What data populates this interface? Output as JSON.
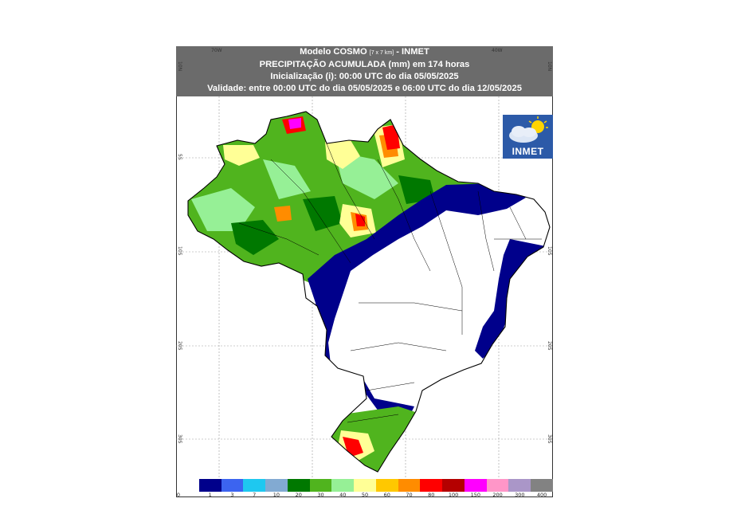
{
  "header": {
    "model": "Modelo COSMO",
    "resolution": "[7 x 7 km]",
    "institute": "- INMET",
    "title": "PRECIPITAÇÃO ACUMULADA (mm) em 174 horas",
    "init": "Inicialização (i): 00:00 UTC do dia 05/05/2025",
    "validity": "Validade: entre 00:00 UTC do dia 05/05/2025 e 06:00 UTC do dia 12/05/2025"
  },
  "coords": {
    "top": [
      "70W",
      "40W"
    ],
    "left": [
      "10N",
      "5S",
      "10S",
      "20S",
      "30S"
    ],
    "right": [
      "10N",
      "10S",
      "20S",
      "30S"
    ]
  },
  "logo": {
    "text": "INMET",
    "icon": "cloud-sun-icon"
  },
  "legend": {
    "labels": [
      "0",
      "1",
      "3",
      "7",
      "10",
      "20",
      "30",
      "40",
      "50",
      "60",
      "70",
      "80",
      "100",
      "150",
      "200",
      "300",
      "400"
    ],
    "colors": [
      "#ffffff",
      "#00008b",
      "#3c64f0",
      "#1ec8f0",
      "#82aad2",
      "#007800",
      "#50b41e",
      "#96f096",
      "#ffff96",
      "#ffc800",
      "#ff8c00",
      "#ff0000",
      "#b40000",
      "#ff00ff",
      "#ff96c8",
      "#aa96c8",
      "#828282"
    ]
  },
  "colors": {
    "header_bg": "#6b6b6b",
    "dry": "#ffffff",
    "navy": "#00008b",
    "green": "#50b41e",
    "light_green": "#96f096",
    "dark_green": "#007800",
    "yellow": "#ffff96",
    "orange": "#ff8c00",
    "red": "#ff0000",
    "magenta": "#ff00ff"
  }
}
